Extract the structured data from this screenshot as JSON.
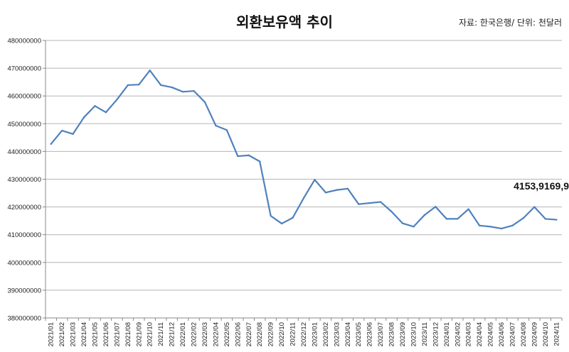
{
  "chart_data": {
    "type": "line",
    "title": "외환보유액 추이",
    "source_note": "자료: 한국은행/ 단위: 천달러",
    "annotation": "4153,9169,9",
    "ylim": [
      380000000,
      480000000
    ],
    "ytick_step": 10000000,
    "grid": true,
    "legend": "none",
    "colors": {
      "line": "#4f81bd",
      "grid": "#b5b5b5"
    },
    "categories": [
      "2021/01",
      "2021/02",
      "2021/03",
      "2021/04",
      "2021/05",
      "2021/06",
      "2021/07",
      "2021/08",
      "2021/09",
      "2021/10",
      "2021/11",
      "2021/12",
      "2022/01",
      "2022/02",
      "2022/03",
      "2022/04",
      "2022/05",
      "2022/06",
      "2022/07",
      "2022/08",
      "2022/09",
      "2022/10",
      "2022/11",
      "2022/12",
      "2023/01",
      "2023/02",
      "2023/03",
      "2023/04",
      "2023/05",
      "2023/06",
      "2023/07",
      "2023/08",
      "2023/09",
      "2023/10",
      "2023/11",
      "2023/12",
      "2024/01",
      "2024/02",
      "2024/03",
      "2024/04",
      "2024/05",
      "2024/06",
      "2024/07",
      "2024/08",
      "2024/09",
      "2024/10",
      "2024/11"
    ],
    "series": [
      {
        "values": [
          442700000,
          447500000,
          446300000,
          452300000,
          456400000,
          454100000,
          458700000,
          463900000,
          464100000,
          469200000,
          463900000,
          463100000,
          461500000,
          461800000,
          457800000,
          449300000,
          447700000,
          438300000,
          438600000,
          436400000,
          416800000,
          414000000,
          416100000,
          423200000,
          429800000,
          425200000,
          426100000,
          426600000,
          421000000,
          421400000,
          421800000,
          418300000,
          414100000,
          412900000,
          417100000,
          420100000,
          415700000,
          415700000,
          419200000,
          413300000,
          412900000,
          412200000,
          413300000,
          416000000,
          420000000,
          415700000,
          415400000
        ]
      }
    ]
  }
}
